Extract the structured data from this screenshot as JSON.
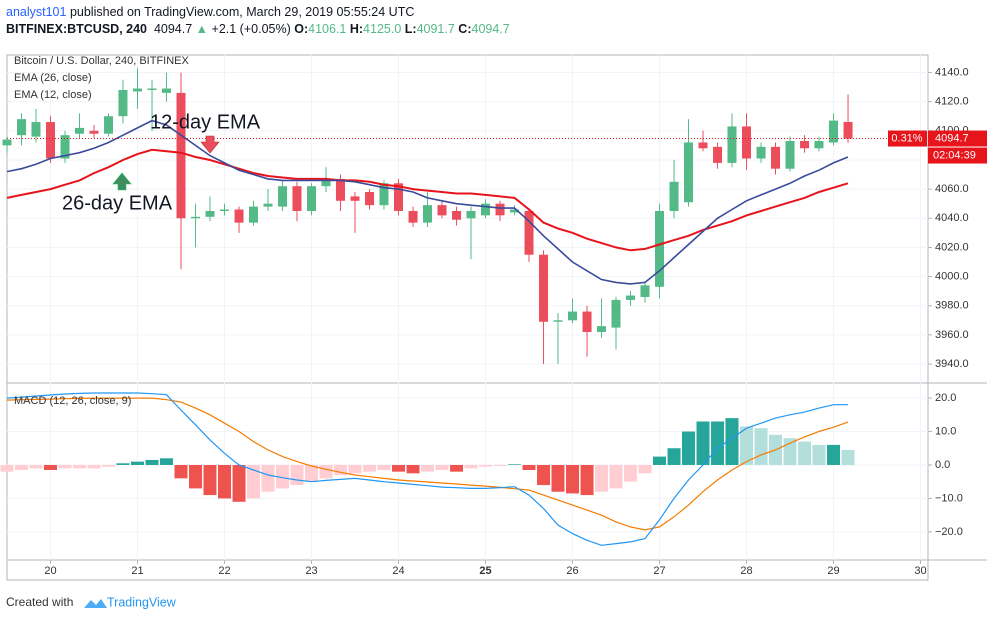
{
  "header": {
    "author": "analyst101",
    "published": "published on TradingView.com, March 29, 2019 05:55:24 UTC",
    "symbol": "BITFINEX:BTCUSD, 240",
    "last": "4094.7",
    "change": "+2.1 (+0.05%)",
    "ohlc": [
      {
        "label": "O:",
        "value": "4106.1"
      },
      {
        "label": "H:",
        "value": "4125.0"
      },
      {
        "label": "L:",
        "value": "4091.7"
      },
      {
        "label": "C:",
        "value": "4094.7"
      }
    ]
  },
  "footer": {
    "text": "Created with",
    "brand": "TradingView"
  },
  "chart_data": [
    {
      "type": "candlestick",
      "title": "Bitcoin / U.S. Dollar, 240, BITFINEX",
      "up_color": "#53b987",
      "down_color": "#eb4d5c",
      "grid": true,
      "x": [
        19.5,
        19.667,
        19.833,
        20,
        20.167,
        20.333,
        20.5,
        20.667,
        20.833,
        21,
        21.167,
        21.333,
        21.5,
        21.667,
        21.833,
        22,
        22.167,
        22.333,
        22.5,
        22.667,
        22.833,
        23,
        23.167,
        23.333,
        23.5,
        23.667,
        23.833,
        24,
        24.167,
        24.333,
        24.5,
        24.667,
        24.833,
        25,
        25.167,
        25.333,
        25.5,
        25.667,
        25.833,
        26,
        26.167,
        26.333,
        26.5,
        26.667,
        26.833,
        27,
        27.167,
        27.333,
        27.5,
        27.667,
        27.833,
        28,
        28.167,
        28.333,
        28.5,
        28.667,
        28.833,
        29,
        29.167
      ],
      "open": [
        4090,
        4097,
        4096,
        4106,
        4081,
        4098,
        4100,
        4098,
        4110,
        4127,
        4128,
        4126,
        4126,
        4040,
        4041,
        4045,
        4046,
        4037,
        4048,
        4048,
        4062,
        4045,
        4062,
        4067,
        4055,
        4058,
        4049,
        4064,
        4045,
        4037,
        4049,
        4045,
        4040,
        4042,
        4050,
        4044,
        4045,
        4015,
        3969,
        3970,
        3976,
        3962,
        3965,
        3984,
        3986,
        3993,
        4045,
        4051,
        4092,
        4089,
        4078,
        4103,
        4081,
        4089,
        4074,
        4093,
        4088,
        4092,
        4106.1
      ],
      "high": [
        4096,
        4112,
        4115,
        4110,
        4100,
        4112,
        4104,
        4112,
        4135,
        4143,
        4135,
        4140,
        4140,
        4050,
        4055,
        4050,
        4048,
        4052,
        4060,
        4066,
        4065,
        4064,
        4075,
        4070,
        4058,
        4060,
        4066,
        4067,
        4048,
        4058,
        4052,
        4048,
        4048,
        4053,
        4052,
        4049,
        4047,
        4018,
        3975,
        3985,
        3980,
        3985,
        3986,
        3990,
        3996,
        4050,
        4080,
        4108,
        4100,
        4092,
        4112,
        4112,
        4092,
        4092,
        4096,
        4097,
        4096,
        4112,
        4125
      ],
      "low": [
        4085,
        4090,
        4092,
        4078,
        4078,
        4095,
        4095,
        4096,
        4105,
        4115,
        4100,
        4120,
        4005,
        4020,
        4038,
        4042,
        4030,
        4035,
        4045,
        4045,
        4038,
        4042,
        4058,
        4045,
        4030,
        4046,
        4046,
        4042,
        4034,
        4034,
        4040,
        4035,
        4012,
        4040,
        4038,
        4042,
        4010,
        3940,
        3940,
        3968,
        3945,
        3958,
        3950,
        3980,
        3982,
        3985,
        4040,
        4048,
        4086,
        4074,
        4075,
        4073,
        4078,
        4070,
        4072,
        4085,
        4086,
        4090,
        4091.7
      ],
      "close": [
        4094,
        4108,
        4106,
        4081,
        4097,
        4102,
        4098,
        4110,
        4128,
        4129,
        4129,
        4129,
        4040,
        4041,
        4045,
        4046,
        4037,
        4048,
        4050,
        4062,
        4045,
        4062,
        4067,
        4052,
        4052,
        4049,
        4064,
        4045,
        4037,
        4049,
        4042,
        4039,
        4045,
        4050,
        4042,
        4046,
        4015,
        3969,
        3970,
        3976,
        3962,
        3966,
        3984,
        3987,
        3994,
        4045,
        4065,
        4092,
        4088,
        4078,
        4103,
        4081,
        4089,
        4074,
        4093,
        4088,
        4093,
        4107,
        4094.7
      ],
      "series": [
        {
          "name": "EMA (26, close)",
          "color": "#e8141c",
          "values": [
            4054,
            4056,
            4058,
            4060,
            4063,
            4066,
            4071,
            4075,
            4080,
            4084,
            4087,
            4086,
            4085,
            4082,
            4080,
            4077,
            4074,
            4071,
            4069,
            4068,
            4067,
            4067,
            4067,
            4066,
            4066,
            4065,
            4063,
            4062,
            4060,
            4059,
            4058,
            4057,
            4057,
            4056,
            4055,
            4054,
            4046,
            4037,
            4033,
            4030,
            4026,
            4023,
            4020,
            4018,
            4019,
            4022,
            4025,
            4028,
            4032,
            4035,
            4038,
            4042,
            4045,
            4048,
            4051,
            4054,
            4058,
            4061,
            4064
          ]
        },
        {
          "name": "EMA (12, close)",
          "color": "#3b4b9b",
          "values": [
            4072,
            4074,
            4077,
            4081,
            4083,
            4085,
            4088,
            4092,
            4097,
            4102,
            4107,
            4104,
            4097,
            4090,
            4083,
            4078,
            4073,
            4070,
            4067,
            4066,
            4066,
            4066,
            4066,
            4066,
            4065,
            4063,
            4061,
            4060,
            4058,
            4054,
            4052,
            4050,
            4049,
            4048,
            4047,
            4047,
            4038,
            4028,
            4019,
            4010,
            4004,
            3998,
            3996,
            3995,
            3996,
            4004,
            4013,
            4022,
            4031,
            4040,
            4046,
            4052,
            4056,
            4060,
            4064,
            4069,
            4073,
            4078,
            4082
          ]
        }
      ],
      "annotations": [
        {
          "text": "12-day EMA"
        },
        {
          "text": "26-day EMA"
        }
      ],
      "price_line": 4094.7,
      "price_label": "4094.7",
      "change_label": "0.31%",
      "countdown": "02:04:39",
      "line_color": "#e8141c",
      "xlim": [
        19.5,
        30.086
      ],
      "xticks": [
        20,
        21,
        22,
        23,
        24,
        25,
        26,
        27,
        28,
        29,
        30
      ],
      "xticks_bold": [
        25
      ],
      "ylim": [
        3927,
        4152
      ],
      "yticks": [
        {
          "value": 3940,
          "label": "3940.0"
        },
        {
          "value": 3960,
          "label": "3960.0"
        },
        {
          "value": 3980,
          "label": "3980.0"
        },
        {
          "value": 4000,
          "label": "4000.0"
        },
        {
          "value": 4020,
          "label": "4020.0"
        },
        {
          "value": 4040,
          "label": "4040.0"
        },
        {
          "value": 4060,
          "label": "4060.0"
        },
        {
          "value": 4080,
          "label": "4080.0"
        },
        {
          "value": 4100,
          "label": "4100.0"
        },
        {
          "value": 4120,
          "label": "4120.0"
        },
        {
          "value": 4140,
          "label": "4140.0"
        }
      ]
    },
    {
      "type": "macd",
      "title": "MACD (12, 26, close, 9)",
      "histogram_colors": [
        "#26a69a",
        "#b2dfdb",
        "#ef5350",
        "#ffcdd2"
      ],
      "histogram": [
        -2,
        -1.5,
        -1,
        -1.5,
        -1,
        -1,
        -1,
        -0.5,
        0.5,
        1,
        1.5,
        2,
        -4,
        -7,
        -9,
        -10,
        -11,
        -10,
        -8,
        -7,
        -6,
        -5,
        -4,
        -3,
        -2.5,
        -2,
        -1.5,
        -2,
        -2.5,
        -2,
        -1.5,
        -2,
        -1,
        -0.5,
        -0.3,
        0.2,
        -1.5,
        -6,
        -8,
        -8.5,
        -9,
        -8,
        -7,
        -5,
        -2.5,
        2.5,
        5,
        10,
        13,
        13,
        14,
        11.5,
        11,
        9,
        8,
        7,
        6,
        6,
        4.5
      ],
      "series": [
        {
          "name": "MACD",
          "color": "#2196f3",
          "values": [
            20,
            20.3,
            20.6,
            20.9,
            21.2,
            21.4,
            21.5,
            21.5,
            21.5,
            21.5,
            21.3,
            21,
            16.4,
            12,
            7.5,
            3.5,
            0,
            -1.5,
            -3,
            -3.8,
            -4.5,
            -5,
            -4.6,
            -4.3,
            -4,
            -4.5,
            -5,
            -5.4,
            -5.8,
            -6.2,
            -6.6,
            -6.8,
            -7,
            -7,
            -6.8,
            -6.5,
            -9,
            -13,
            -18,
            -20.5,
            -22.5,
            -24,
            -23.5,
            -23,
            -22,
            -16.4,
            -10,
            -4.5,
            0,
            5,
            8,
            11,
            12.5,
            14,
            15,
            15.8,
            17,
            18,
            18
          ]
        },
        {
          "name": "Signal",
          "color": "#f57c00",
          "values": [
            19.4,
            19.5,
            19.6,
            19.7,
            19.8,
            19.9,
            20,
            20,
            20,
            20,
            20,
            19.5,
            18.8,
            17,
            15,
            12.5,
            10,
            7,
            4.5,
            2.5,
            1,
            -0.3,
            -1.3,
            -2.2,
            -3,
            -3.5,
            -4,
            -4.5,
            -4.8,
            -5.1,
            -5.4,
            -5.7,
            -6,
            -6.3,
            -6.7,
            -7.1,
            -7.5,
            -9,
            -10.5,
            -12,
            -13.5,
            -15,
            -17,
            -18.5,
            -19.4,
            -18.5,
            -15.5,
            -12,
            -8,
            -4.5,
            -1.5,
            1,
            3,
            4.5,
            6.5,
            8.4,
            10,
            11.3,
            12.8
          ]
        }
      ],
      "ylim": [
        -28.4,
        24.5
      ],
      "yticks": [
        {
          "value": -20,
          "label": "−20.0"
        },
        {
          "value": -10,
          "label": "−10.0"
        },
        {
          "value": 0,
          "label": "0.0"
        },
        {
          "value": 10,
          "label": "10.0"
        },
        {
          "value": 20,
          "label": "20.0"
        }
      ]
    }
  ]
}
